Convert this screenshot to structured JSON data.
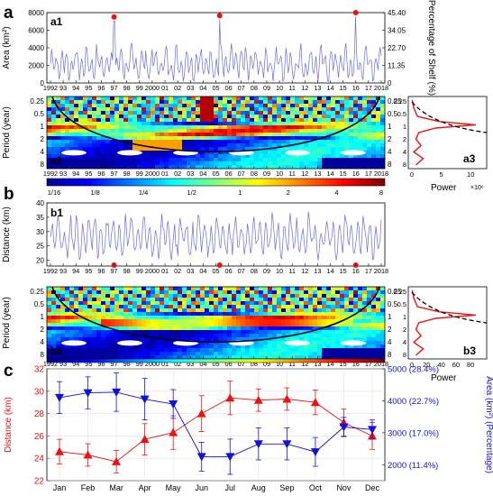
{
  "panel_letters": {
    "a": "a",
    "b": "b",
    "c": "c"
  },
  "colors": {
    "area_line": "#6a6ae8",
    "distance_line": "#6a6ae8",
    "marker": "#ee1111",
    "coi": "#000000",
    "red_series": "#ee1111",
    "blue_series": "#1111dd"
  },
  "a1": {
    "label": "a1",
    "ylabel_left": "Area (km²)",
    "ylabel_right": "Percentage of Shelf (%)",
    "yticks_left": [
      "0",
      "2000",
      "4000",
      "6000",
      "8000"
    ],
    "yticks_right": [
      "0",
      "11.35",
      "22.70",
      "34.05",
      "45.40"
    ],
    "ylim": [
      0,
      8000
    ],
    "peaks": [
      {
        "year": 1997.0,
        "value": 7500
      },
      {
        "year": 2005.3,
        "value": 7650
      },
      {
        "year": 2016.0,
        "value": 8000
      }
    ]
  },
  "year_ticks": [
    "1992",
    "93",
    "94",
    "95",
    "96",
    "97",
    "98",
    "99",
    "2000",
    "01",
    "02",
    "03",
    "04",
    "05",
    "06",
    "07",
    "08",
    "09",
    "10",
    "11",
    "12",
    "13",
    "14",
    "15",
    "16",
    "17",
    "2018"
  ],
  "wavelet_yticks": [
    "0.25",
    "0.5",
    "1",
    "2",
    "4",
    "8"
  ],
  "ylabel_period": "Period (year)",
  "a2": {
    "label": "a2"
  },
  "a3": {
    "label": "a3",
    "xlabel": "Power",
    "xticks": [
      "0",
      "5",
      "10"
    ],
    "exponent": "×10⁶"
  },
  "colorbar": {
    "ticks": [
      "1/16",
      "1/8",
      "1/4",
      "1/2",
      "1",
      "2",
      "4",
      "8"
    ]
  },
  "b1": {
    "label": "b1",
    "ylabel": "Distance (km)",
    "yticks": [
      "20",
      "25",
      "30",
      "35",
      "40"
    ],
    "ylim": [
      18,
      40
    ],
    "markers": [
      {
        "year": 1997.0,
        "value": 18.3
      },
      {
        "year": 2005.3,
        "value": 18.3
      },
      {
        "year": 2016.0,
        "value": 18.3
      }
    ]
  },
  "b2": {
    "label": "b2"
  },
  "b3": {
    "label": "b3",
    "xlabel": "Power",
    "xticks": [
      "0",
      "20",
      "40",
      "60",
      "80"
    ]
  },
  "chart_data": {
    "type": "line",
    "categories": [
      "Jan",
      "Feb",
      "Mar",
      "Apr",
      "May",
      "Jun",
      "Jul",
      "Aug",
      "Sep",
      "Oct",
      "Nov",
      "Dec"
    ],
    "ylabel_left": "Distance (km)",
    "ylabel_right": "Area (km²) (Percentage)",
    "yticks_left": [
      "22",
      "24",
      "26",
      "28",
      "30",
      "32"
    ],
    "yticks_right": [
      "2000 (11.4%)",
      "3000 (17.0%)",
      "4000 (22.7%)",
      "5000 (28.4%)"
    ],
    "ylim_left": [
      22,
      32
    ],
    "ylim_right": [
      1500,
      5000
    ],
    "series": [
      {
        "axis": "left",
        "marker": "triangle-up",
        "values": [
          24.6,
          24.3,
          23.7,
          25.7,
          26.3,
          28.0,
          29.4,
          29.2,
          29.3,
          29.0,
          27.2,
          26.0
        ],
        "err": [
          1.1,
          1.0,
          1.0,
          1.4,
          1.5,
          1.6,
          1.5,
          1.0,
          1.0,
          1.1,
          1.2,
          1.2
        ]
      },
      {
        "axis": "right",
        "marker": "triangle-down",
        "values": [
          4100,
          4250,
          4270,
          4050,
          3900,
          2250,
          2250,
          2650,
          2650,
          2400,
          3180,
          3100
        ],
        "err": [
          500,
          500,
          600,
          650,
          450,
          450,
          550,
          500,
          500,
          450,
          300,
          300
        ]
      }
    ]
  }
}
